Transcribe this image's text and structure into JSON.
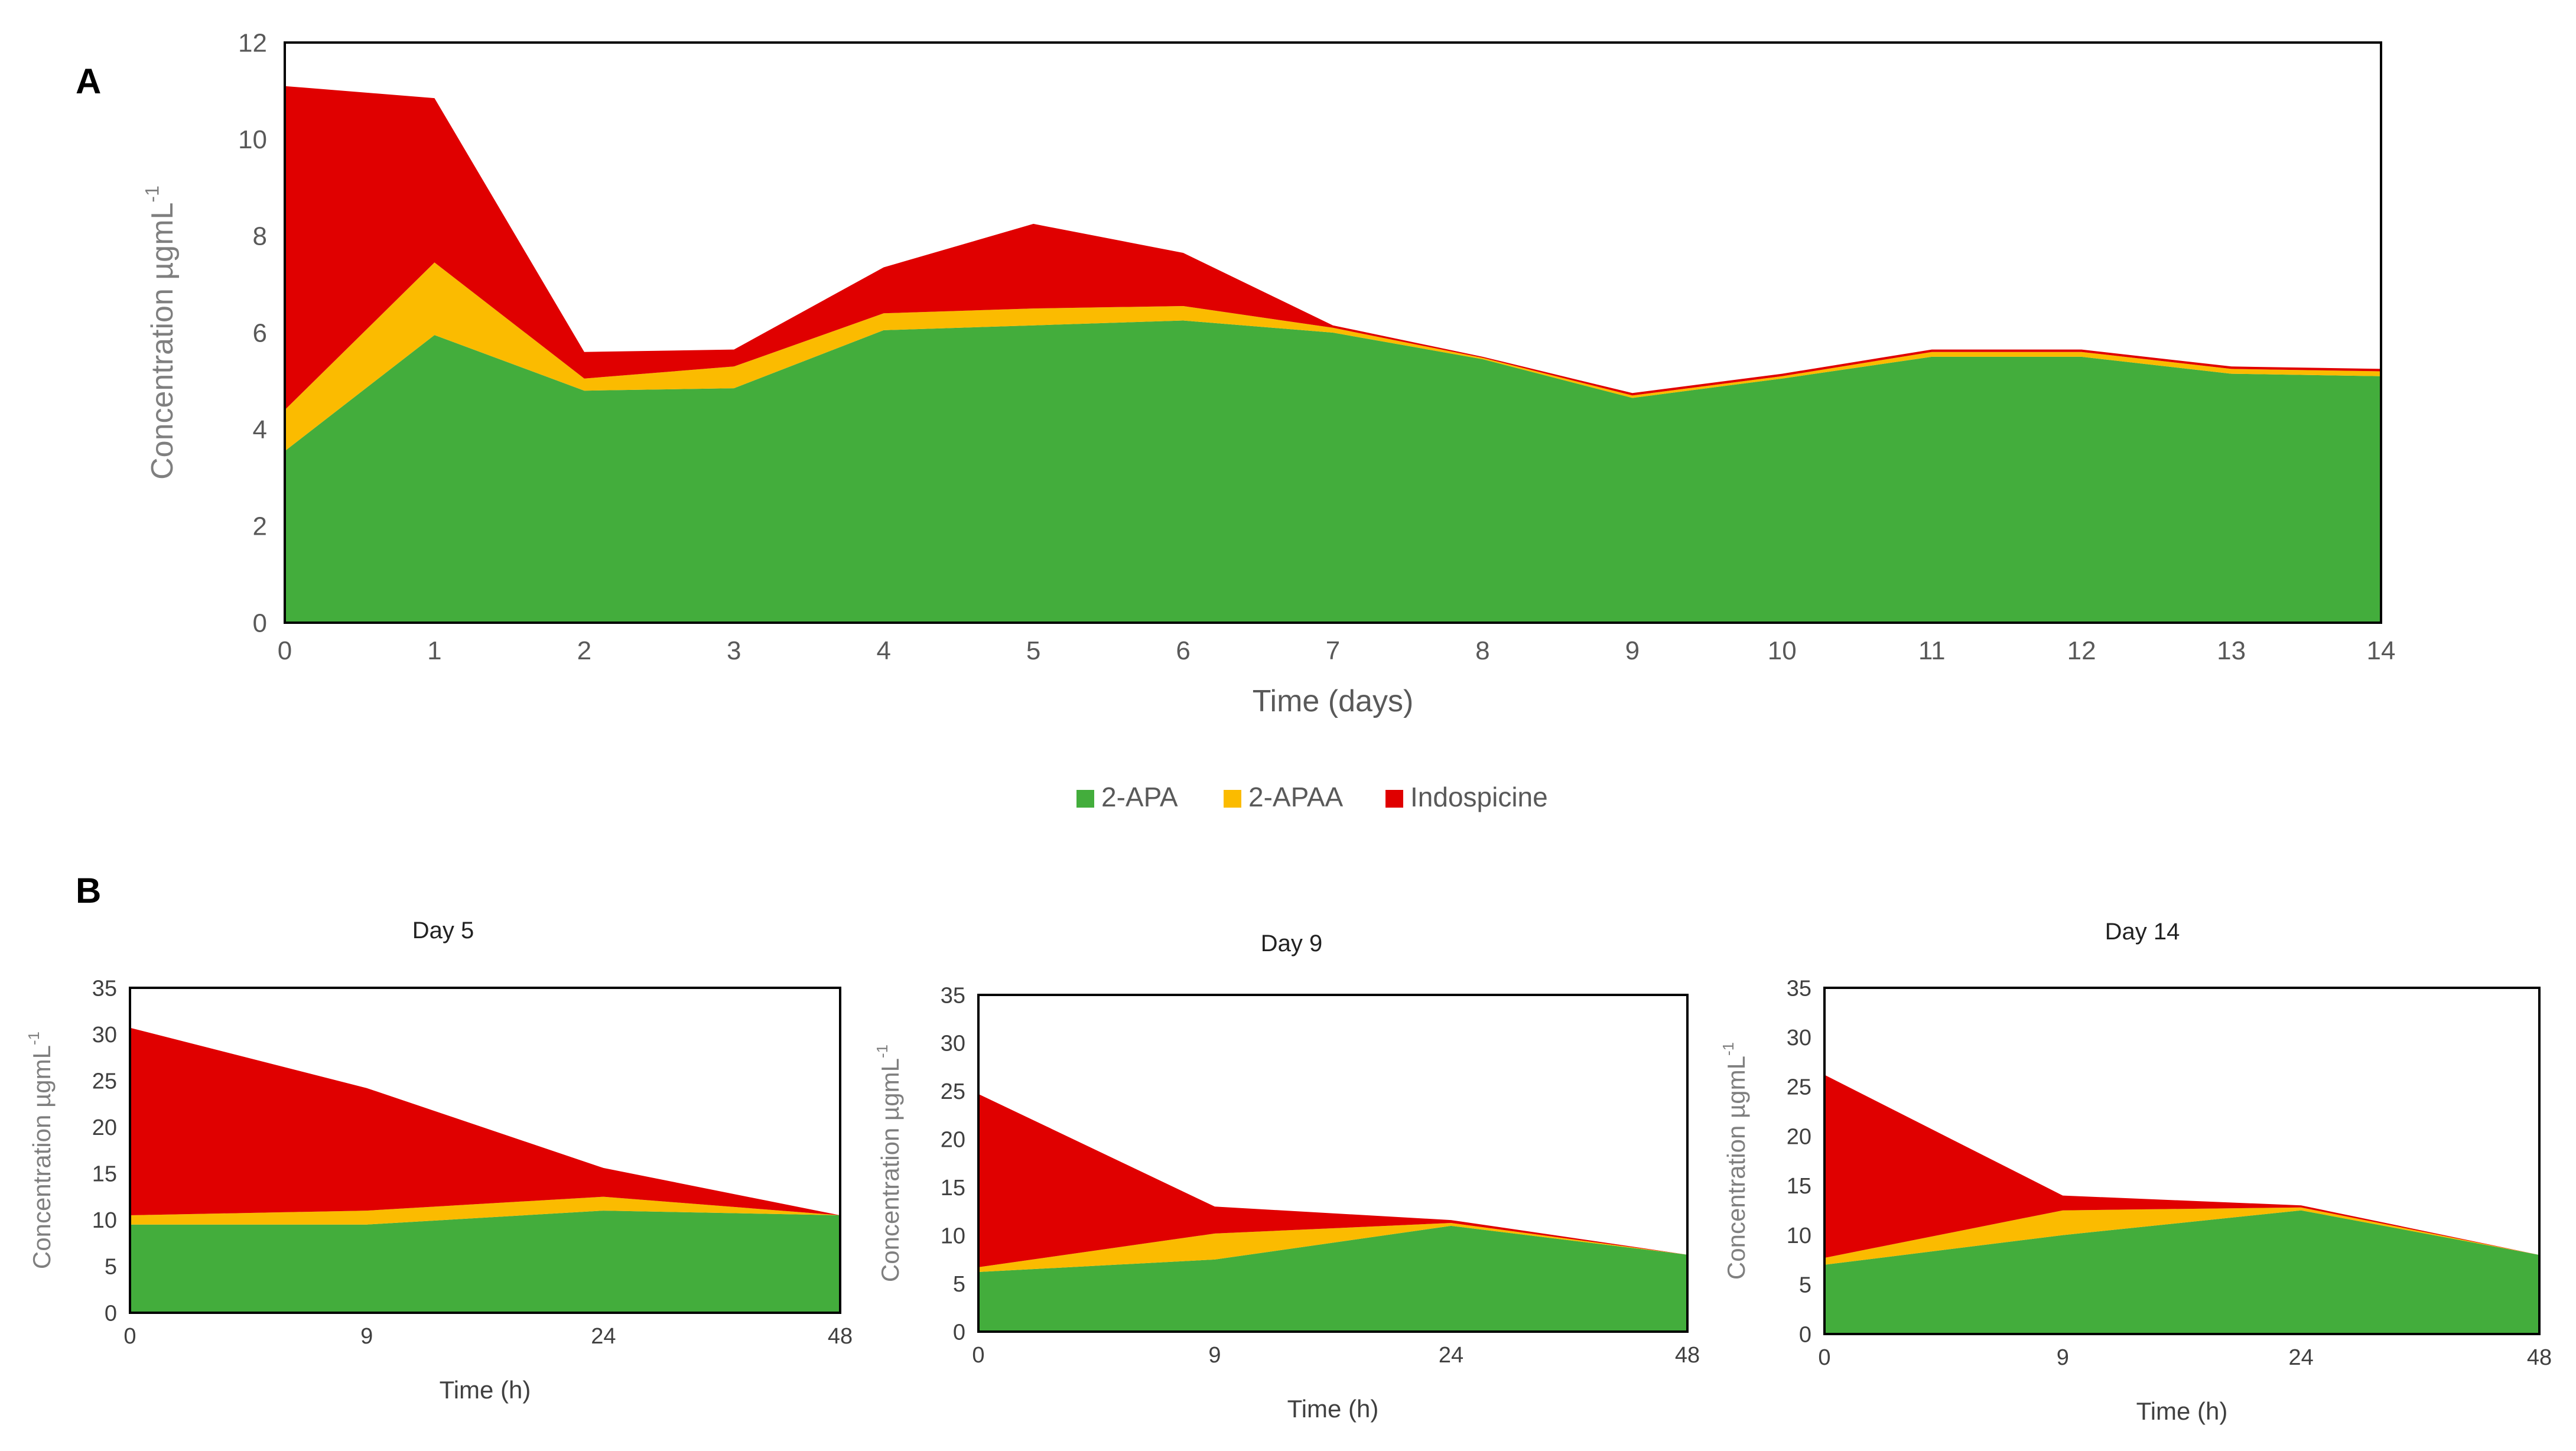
{
  "panel_labels": {
    "a": "A",
    "b": "B"
  },
  "series_colors": {
    "2-APA": "#43ad3c",
    "2-APAA": "#fbbb00",
    "Indospicine": "#e00000"
  },
  "legend": [
    "2-APA",
    "2-APAA",
    "Indospicine"
  ],
  "chart_data": [
    {
      "id": "A",
      "type": "area",
      "stacked": true,
      "title": "",
      "xlabel": "Time (days)",
      "ylabel": "Concentration µgmL",
      "ylabel_sup": "-1",
      "ylim": [
        0,
        12
      ],
      "yticks": [
        0,
        2,
        4,
        6,
        8,
        10,
        12
      ],
      "categories": [
        "0",
        "1",
        "2",
        "3",
        "4",
        "5",
        "6",
        "7",
        "8",
        "9",
        "10",
        "11",
        "12",
        "13",
        "14"
      ],
      "series": [
        {
          "name": "2-APA",
          "values": [
            3.55,
            5.95,
            4.8,
            4.85,
            6.05,
            6.15,
            6.25,
            6.0,
            5.45,
            4.65,
            5.05,
            5.5,
            5.5,
            5.15,
            5.1
          ]
        },
        {
          "name": "2-APAA",
          "values": [
            0.85,
            1.5,
            0.25,
            0.45,
            0.35,
            0.35,
            0.3,
            0.1,
            0.03,
            0.05,
            0.05,
            0.1,
            0.1,
            0.1,
            0.1
          ]
        },
        {
          "name": "Indospicine",
          "values": [
            6.7,
            3.4,
            0.55,
            0.35,
            0.95,
            1.75,
            1.1,
            0.05,
            0.02,
            0.05,
            0.05,
            0.05,
            0.05,
            0.05,
            0.05
          ]
        }
      ]
    },
    {
      "id": "B1",
      "type": "area",
      "stacked": true,
      "title": "Day 5",
      "xlabel": "Time (h)",
      "ylabel": "Concentration µgmL",
      "ylabel_sup": "-1",
      "ylim": [
        0,
        35
      ],
      "yticks": [
        0,
        5,
        10,
        15,
        20,
        25,
        30,
        35
      ],
      "categories": [
        "0",
        "9",
        "24",
        "48"
      ],
      "series": [
        {
          "name": "2-APA",
          "values": [
            9.5,
            9.5,
            11.0,
            10.5
          ]
        },
        {
          "name": "2-APAA",
          "values": [
            1.0,
            1.5,
            1.5,
            0.0
          ]
        },
        {
          "name": "Indospicine",
          "values": [
            20.2,
            13.2,
            3.1,
            0.0
          ]
        }
      ]
    },
    {
      "id": "B2",
      "type": "area",
      "stacked": true,
      "title": "Day 9",
      "xlabel": "Time (h)",
      "ylabel": "Concentration µgmL",
      "ylabel_sup": "-1",
      "ylim": [
        0,
        35
      ],
      "yticks": [
        0,
        5,
        10,
        15,
        20,
        25,
        30,
        35
      ],
      "categories": [
        "0",
        "9",
        "24",
        "48"
      ],
      "series": [
        {
          "name": "2-APA",
          "values": [
            6.2,
            7.5,
            11.0,
            8.0
          ]
        },
        {
          "name": "2-APAA",
          "values": [
            0.5,
            2.7,
            0.3,
            0.0
          ]
        },
        {
          "name": "Indospicine",
          "values": [
            18.0,
            2.8,
            0.3,
            0.0
          ]
        }
      ]
    },
    {
      "id": "B3",
      "type": "area",
      "stacked": true,
      "title": "Day 14",
      "xlabel": "Time (h)",
      "ylabel": "Concentration µgmL",
      "ylabel_sup": "-1",
      "ylim": [
        0,
        35
      ],
      "yticks": [
        0,
        5,
        10,
        15,
        20,
        25,
        30,
        35
      ],
      "categories": [
        "0",
        "9",
        "24",
        "48"
      ],
      "series": [
        {
          "name": "2-APA",
          "values": [
            7.0,
            10.0,
            12.5,
            8.0
          ]
        },
        {
          "name": "2-APAA",
          "values": [
            0.7,
            2.5,
            0.3,
            0.0
          ]
        },
        {
          "name": "Indospicine",
          "values": [
            18.5,
            1.5,
            0.2,
            0.0
          ]
        }
      ]
    }
  ]
}
